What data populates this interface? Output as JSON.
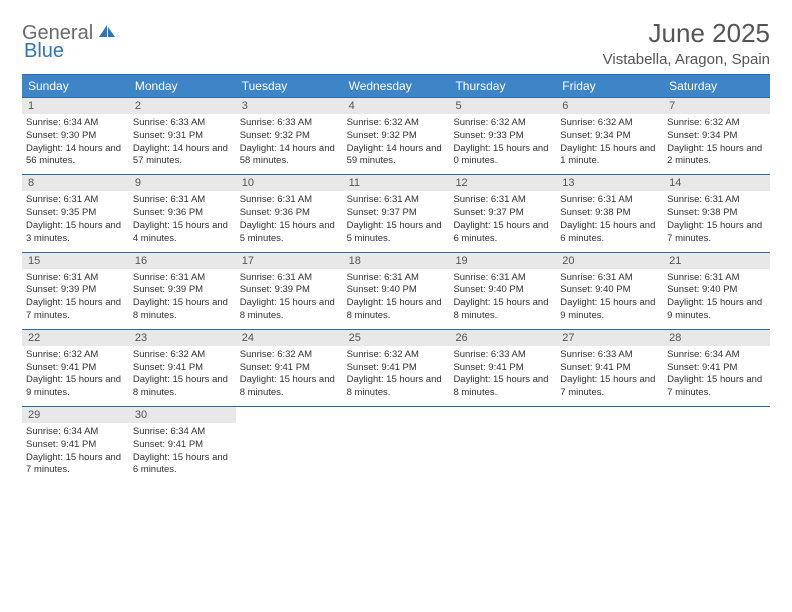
{
  "brand": {
    "part1": "General",
    "part2": "Blue"
  },
  "title": "June 2025",
  "location": "Vistabella, Aragon, Spain",
  "colors": {
    "header_bg": "#3d85c6",
    "header_text": "#ffffff",
    "rule": "#2f6aa8",
    "daynum_bg": "#e8e8e8",
    "text_muted": "#555555",
    "brand_blue": "#3374b8",
    "brand_gray": "#6a6a6a"
  },
  "day_names": [
    "Sunday",
    "Monday",
    "Tuesday",
    "Wednesday",
    "Thursday",
    "Friday",
    "Saturday"
  ],
  "weeks": [
    [
      {
        "n": 1,
        "sr": "6:34 AM",
        "ss": "9:30 PM",
        "dl": "14 hours and 56 minutes."
      },
      {
        "n": 2,
        "sr": "6:33 AM",
        "ss": "9:31 PM",
        "dl": "14 hours and 57 minutes."
      },
      {
        "n": 3,
        "sr": "6:33 AM",
        "ss": "9:32 PM",
        "dl": "14 hours and 58 minutes."
      },
      {
        "n": 4,
        "sr": "6:32 AM",
        "ss": "9:32 PM",
        "dl": "14 hours and 59 minutes."
      },
      {
        "n": 5,
        "sr": "6:32 AM",
        "ss": "9:33 PM",
        "dl": "15 hours and 0 minutes."
      },
      {
        "n": 6,
        "sr": "6:32 AM",
        "ss": "9:34 PM",
        "dl": "15 hours and 1 minute."
      },
      {
        "n": 7,
        "sr": "6:32 AM",
        "ss": "9:34 PM",
        "dl": "15 hours and 2 minutes."
      }
    ],
    [
      {
        "n": 8,
        "sr": "6:31 AM",
        "ss": "9:35 PM",
        "dl": "15 hours and 3 minutes."
      },
      {
        "n": 9,
        "sr": "6:31 AM",
        "ss": "9:36 PM",
        "dl": "15 hours and 4 minutes."
      },
      {
        "n": 10,
        "sr": "6:31 AM",
        "ss": "9:36 PM",
        "dl": "15 hours and 5 minutes."
      },
      {
        "n": 11,
        "sr": "6:31 AM",
        "ss": "9:37 PM",
        "dl": "15 hours and 5 minutes."
      },
      {
        "n": 12,
        "sr": "6:31 AM",
        "ss": "9:37 PM",
        "dl": "15 hours and 6 minutes."
      },
      {
        "n": 13,
        "sr": "6:31 AM",
        "ss": "9:38 PM",
        "dl": "15 hours and 6 minutes."
      },
      {
        "n": 14,
        "sr": "6:31 AM",
        "ss": "9:38 PM",
        "dl": "15 hours and 7 minutes."
      }
    ],
    [
      {
        "n": 15,
        "sr": "6:31 AM",
        "ss": "9:39 PM",
        "dl": "15 hours and 7 minutes."
      },
      {
        "n": 16,
        "sr": "6:31 AM",
        "ss": "9:39 PM",
        "dl": "15 hours and 8 minutes."
      },
      {
        "n": 17,
        "sr": "6:31 AM",
        "ss": "9:39 PM",
        "dl": "15 hours and 8 minutes."
      },
      {
        "n": 18,
        "sr": "6:31 AM",
        "ss": "9:40 PM",
        "dl": "15 hours and 8 minutes."
      },
      {
        "n": 19,
        "sr": "6:31 AM",
        "ss": "9:40 PM",
        "dl": "15 hours and 8 minutes."
      },
      {
        "n": 20,
        "sr": "6:31 AM",
        "ss": "9:40 PM",
        "dl": "15 hours and 9 minutes."
      },
      {
        "n": 21,
        "sr": "6:31 AM",
        "ss": "9:40 PM",
        "dl": "15 hours and 9 minutes."
      }
    ],
    [
      {
        "n": 22,
        "sr": "6:32 AM",
        "ss": "9:41 PM",
        "dl": "15 hours and 9 minutes."
      },
      {
        "n": 23,
        "sr": "6:32 AM",
        "ss": "9:41 PM",
        "dl": "15 hours and 8 minutes."
      },
      {
        "n": 24,
        "sr": "6:32 AM",
        "ss": "9:41 PM",
        "dl": "15 hours and 8 minutes."
      },
      {
        "n": 25,
        "sr": "6:32 AM",
        "ss": "9:41 PM",
        "dl": "15 hours and 8 minutes."
      },
      {
        "n": 26,
        "sr": "6:33 AM",
        "ss": "9:41 PM",
        "dl": "15 hours and 8 minutes."
      },
      {
        "n": 27,
        "sr": "6:33 AM",
        "ss": "9:41 PM",
        "dl": "15 hours and 7 minutes."
      },
      {
        "n": 28,
        "sr": "6:34 AM",
        "ss": "9:41 PM",
        "dl": "15 hours and 7 minutes."
      }
    ],
    [
      {
        "n": 29,
        "sr": "6:34 AM",
        "ss": "9:41 PM",
        "dl": "15 hours and 7 minutes."
      },
      {
        "n": 30,
        "sr": "6:34 AM",
        "ss": "9:41 PM",
        "dl": "15 hours and 6 minutes."
      },
      null,
      null,
      null,
      null,
      null
    ]
  ],
  "labels": {
    "sunrise": "Sunrise:",
    "sunset": "Sunset:",
    "daylight": "Daylight:"
  }
}
